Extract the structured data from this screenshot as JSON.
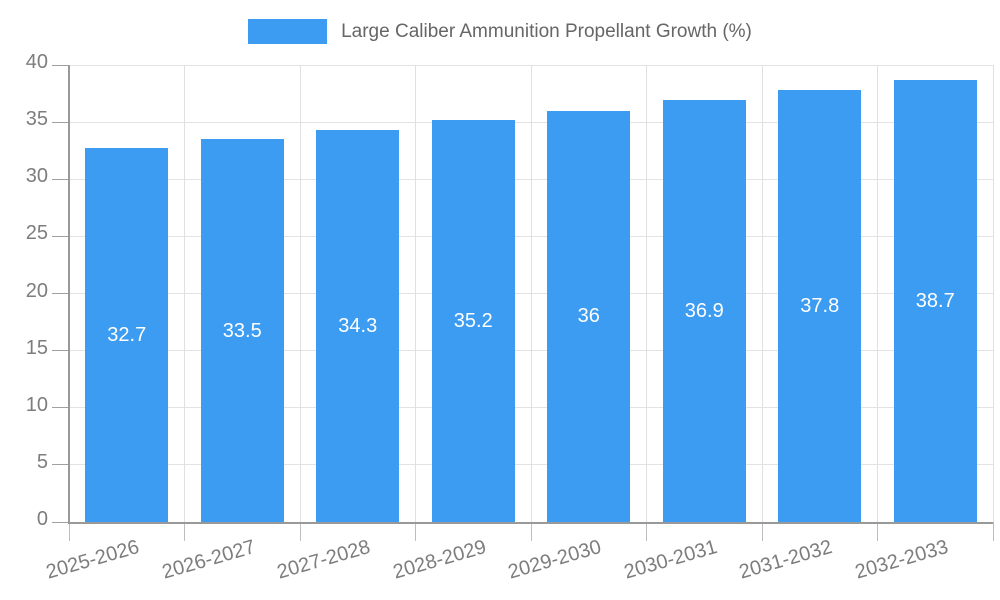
{
  "legend": {
    "label": "Large Caliber Ammunition Propellant Growth (%)",
    "swatch_color": "#3c9cf2"
  },
  "chart_data": {
    "type": "bar",
    "title": "Large Caliber Ammunition Propellant Growth (%)",
    "categories": [
      "2025-2026",
      "2026-2027",
      "2027-2028",
      "2028-2029",
      "2029-2030",
      "2030-2031",
      "2031-2032",
      "2032-2033"
    ],
    "values": [
      32.7,
      33.5,
      34.3,
      35.2,
      36,
      36.9,
      37.8,
      38.7
    ],
    "value_labels": [
      "32.7",
      "33.5",
      "34.3",
      "35.2",
      "36",
      "36.9",
      "37.8",
      "38.7"
    ],
    "xlabel": "",
    "ylabel": "",
    "ylim": [
      0,
      40
    ],
    "yticks": [
      0,
      5,
      10,
      15,
      20,
      25,
      30,
      35,
      40
    ],
    "grid": true,
    "legend_position": "top",
    "bar_color": "#3c9cf2",
    "value_label_color": "#ffffff"
  },
  "colors": {
    "background": "#ffffff",
    "bar": "#3c9cf2",
    "grid": "#e3e3e3",
    "axis": "#999999",
    "tick_label": "#7d7d7d",
    "legend_text": "#666666"
  }
}
